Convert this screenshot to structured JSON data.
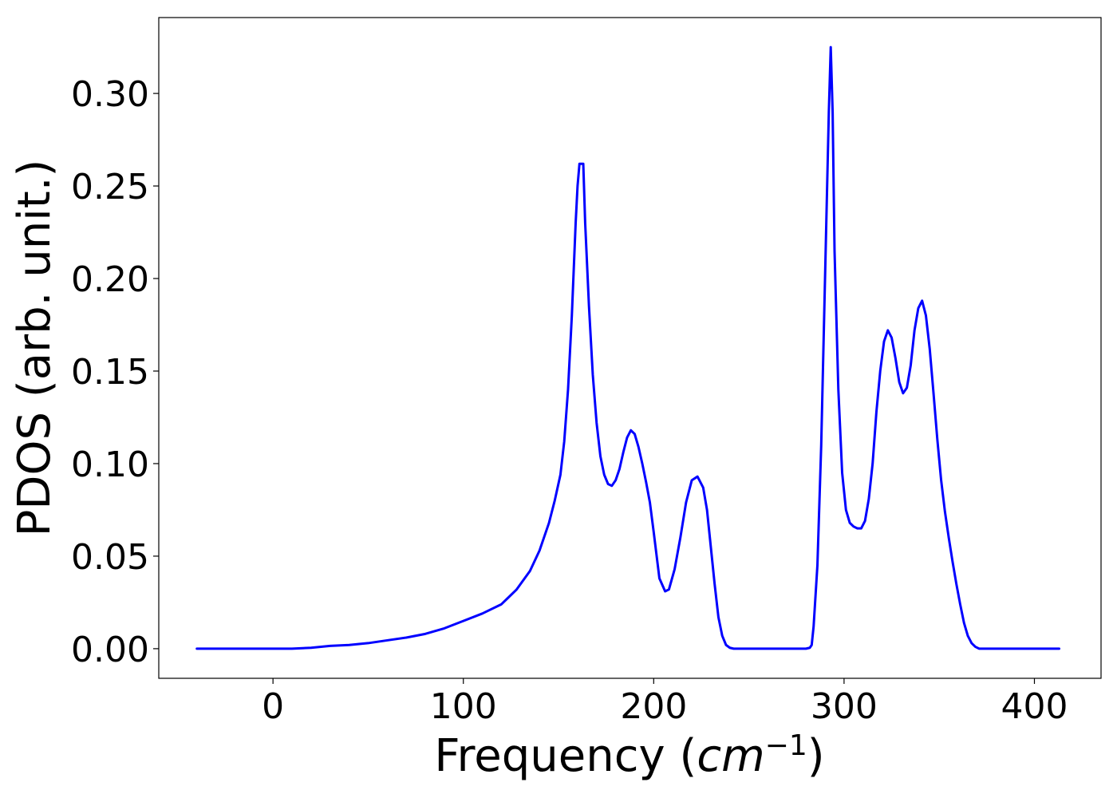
{
  "chart_data": {
    "type": "line",
    "xlabel": {
      "text": "Frequency (",
      "unit_base": "cm",
      "unit_exp": "−1",
      "close": ")"
    },
    "ylabel": "PDOS (arb. unit.)",
    "xlim": [
      -60,
      435
    ],
    "ylim": [
      -0.016,
      0.341
    ],
    "x_ticks": [
      0,
      100,
      200,
      300,
      400
    ],
    "x_tick_labels": [
      "0",
      "100",
      "200",
      "300",
      "400"
    ],
    "y_ticks": [
      0.0,
      0.05,
      0.1,
      0.15,
      0.2,
      0.25,
      0.3
    ],
    "y_tick_labels": [
      "0.00",
      "0.05",
      "0.10",
      "0.15",
      "0.20",
      "0.25",
      "0.30"
    ],
    "grid": false,
    "series": [
      {
        "color": "#0000ff",
        "x": [
          -40,
          -20,
          0,
          10,
          20,
          30,
          40,
          50,
          60,
          70,
          80,
          90,
          100,
          110,
          120,
          128,
          135,
          140,
          145,
          148,
          151,
          153,
          155,
          157,
          159,
          160,
          161,
          163,
          164,
          166,
          168,
          170,
          172,
          174,
          176,
          178,
          180,
          182,
          184,
          186,
          188,
          190,
          192,
          194,
          196,
          198,
          200,
          203,
          206,
          208,
          211,
          214,
          217,
          220,
          223,
          226,
          228,
          230,
          232,
          234,
          236,
          238,
          240,
          242,
          244,
          246,
          248,
          250,
          253,
          260,
          270,
          278,
          280,
          282,
          283,
          284,
          286,
          288,
          290,
          292,
          293,
          294,
          295,
          297,
          299,
          301,
          303,
          305,
          307,
          309,
          311,
          313,
          315,
          317,
          319,
          321,
          323,
          325,
          327,
          329,
          331,
          333,
          335,
          337,
          339,
          341,
          343,
          345,
          347,
          349,
          351,
          353,
          355,
          357,
          359,
          361,
          363,
          365,
          367,
          369,
          371,
          373,
          375,
          377,
          379,
          381,
          383,
          386,
          395,
          413
        ],
        "y": [
          0.0,
          0.0,
          0.0,
          0.0,
          0.0005,
          0.0015,
          0.002,
          0.003,
          0.0045,
          0.006,
          0.008,
          0.011,
          0.015,
          0.019,
          0.024,
          0.032,
          0.042,
          0.053,
          0.068,
          0.08,
          0.094,
          0.112,
          0.14,
          0.18,
          0.23,
          0.25,
          0.262,
          0.262,
          0.23,
          0.185,
          0.148,
          0.122,
          0.104,
          0.094,
          0.089,
          0.088,
          0.091,
          0.097,
          0.106,
          0.114,
          0.118,
          0.116,
          0.109,
          0.1,
          0.09,
          0.079,
          0.063,
          0.038,
          0.031,
          0.032,
          0.043,
          0.06,
          0.079,
          0.091,
          0.093,
          0.087,
          0.075,
          0.055,
          0.035,
          0.017,
          0.007,
          0.002,
          0.0005,
          0.0,
          0.0,
          0.0,
          0.0,
          0.0,
          0.0,
          0.0,
          0.0,
          0.0,
          0.0,
          0.0005,
          0.002,
          0.012,
          0.045,
          0.11,
          0.2,
          0.29,
          0.325,
          0.29,
          0.215,
          0.14,
          0.095,
          0.075,
          0.068,
          0.066,
          0.065,
          0.065,
          0.069,
          0.081,
          0.1,
          0.128,
          0.15,
          0.166,
          0.172,
          0.168,
          0.157,
          0.144,
          0.138,
          0.141,
          0.153,
          0.172,
          0.184,
          0.188,
          0.18,
          0.162,
          0.138,
          0.113,
          0.091,
          0.074,
          0.06,
          0.047,
          0.035,
          0.024,
          0.014,
          0.007,
          0.003,
          0.001,
          0.0,
          0.0,
          0.0,
          0.0,
          0.0,
          0.0,
          0.0,
          0.0,
          0.0,
          0.0
        ]
      }
    ]
  }
}
